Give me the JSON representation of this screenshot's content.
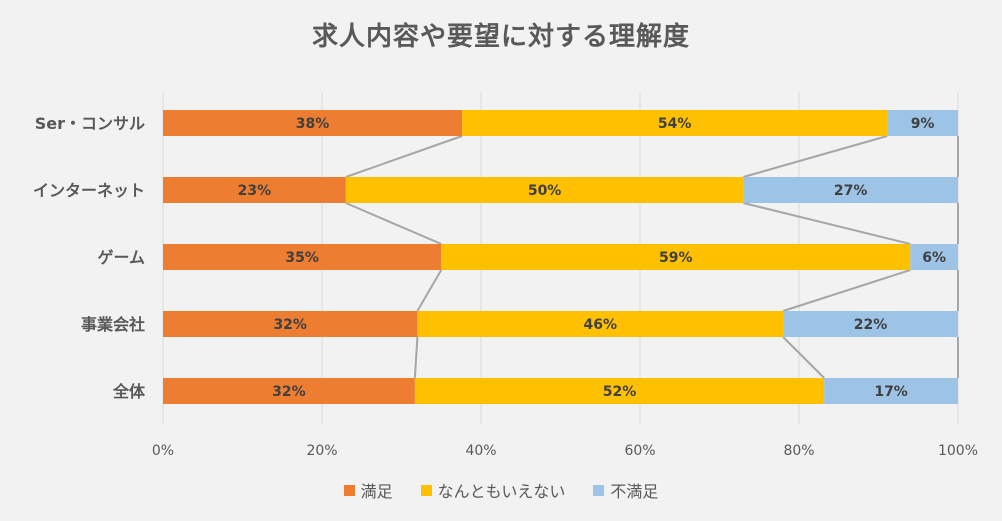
{
  "chart_data": {
    "type": "bar",
    "orientation": "horizontal",
    "stacked": "percent",
    "title": "求人内容や要望に対する理解度",
    "categories": [
      "Ser・コンサル",
      "インターネット",
      "ゲーム",
      "事業会社",
      "全体"
    ],
    "series": [
      {
        "name": "満足",
        "color": "#ed7d31",
        "values": [
          38,
          23,
          35,
          32,
          32
        ]
      },
      {
        "name": "なんともいえない",
        "color": "#ffc000",
        "values": [
          54,
          50,
          59,
          46,
          52
        ]
      },
      {
        "name": "不満足",
        "color": "#9dc3e6",
        "values": [
          9,
          27,
          6,
          22,
          17
        ]
      }
    ],
    "xlim": [
      0,
      100
    ],
    "x_ticks": [
      "0%",
      "20%",
      "40%",
      "60%",
      "80%",
      "100%"
    ],
    "grid": true,
    "series_lines": true,
    "legend_position": "bottom"
  }
}
